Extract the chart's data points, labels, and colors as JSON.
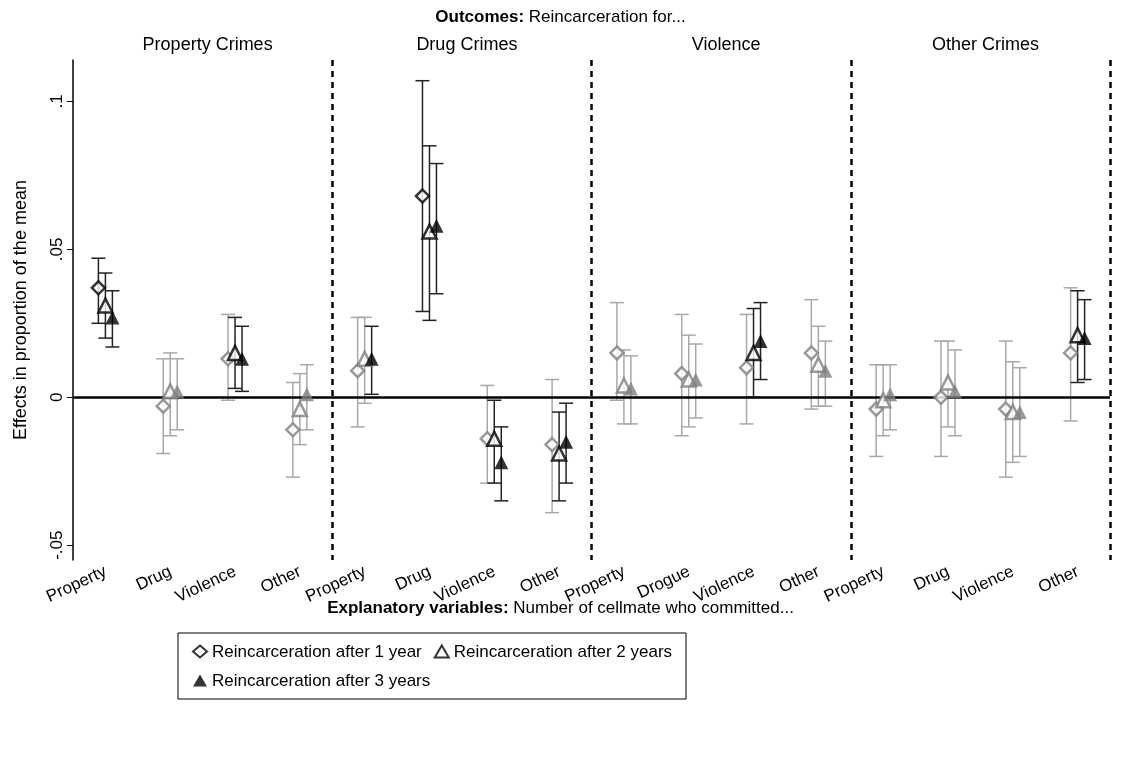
{
  "chart_data": {
    "type": "scatter",
    "title": "Outcomes: Reincarceration for...",
    "xlabel": "Explanatory variables: Number of cellmate who committed...",
    "ylabel": "Effects in proportion of the mean",
    "annotations": [
      "Property Crimes",
      "Drug Crimes",
      "Violence",
      "Other Crimes"
    ],
    "categories": [
      "Property",
      "Drug",
      "Violence",
      "Other",
      "Property",
      "Drug",
      "Violence",
      "Other",
      "Property",
      "Drogue",
      "Violence",
      "Other",
      "Property",
      "Drug",
      "Violence",
      "Other"
    ],
    "ylim": [
      -0.055,
      0.114
    ],
    "yticks": [
      {
        "value": -0.05,
        "label": "-.05"
      },
      {
        "value": 0,
        "label": "0"
      },
      {
        "value": 0.05,
        "label": ".05"
      },
      {
        "value": 0.1,
        "label": ".1"
      }
    ],
    "legend": "bottom",
    "ref_lines": [
      {
        "axis": "y",
        "value": 0
      }
    ],
    "series": [
      {
        "name": "Reincarceration after 1 year",
        "marker": "diamond",
        "color": "#000000",
        "values": [
          0.037,
          -0.003,
          0.013,
          -0.011,
          0.009,
          0.068,
          -0.014,
          -0.016,
          0.015,
          0.008,
          0.01,
          0.015,
          -0.004,
          0.0,
          -0.004,
          0.015
        ],
        "errors": [
          [
            0.025,
            0.047
          ],
          [
            -0.019,
            0.013
          ],
          [
            -0.001,
            0.028
          ],
          [
            -0.027,
            0.005
          ],
          [
            -0.01,
            0.027
          ],
          [
            0.029,
            0.107
          ],
          [
            -0.029,
            0.004
          ],
          [
            -0.039,
            0.006
          ],
          [
            -0.001,
            0.032
          ],
          [
            -0.013,
            0.028
          ],
          [
            -0.009,
            0.028
          ],
          [
            -0.004,
            0.033
          ],
          [
            -0.02,
            0.011
          ],
          [
            -0.02,
            0.019
          ],
          [
            -0.027,
            0.019
          ],
          [
            -0.008,
            0.037
          ]
        ],
        "colors": [
          "#000000",
          "#808080",
          "#808080",
          "#808080",
          "#808080",
          "#000000",
          "#808080",
          "#808080",
          "#808080",
          "#808080",
          "#808080",
          "#808080",
          "#808080",
          "#808080",
          "#808080",
          "#808080"
        ]
      },
      {
        "name": "Reincarceration after 2 years",
        "marker": "triangle",
        "color": "#000000",
        "values": [
          0.031,
          0.002,
          0.015,
          -0.004,
          0.013,
          0.056,
          -0.014,
          -0.019,
          0.004,
          0.006,
          0.015,
          0.011,
          -0.001,
          0.005,
          -0.005,
          0.021
        ],
        "errors": [
          [
            0.02,
            0.042
          ],
          [
            -0.013,
            0.015
          ],
          [
            0.003,
            0.027
          ],
          [
            -0.016,
            0.008
          ],
          [
            -0.002,
            0.027
          ],
          [
            0.026,
            0.085
          ],
          [
            -0.029,
            -0.001
          ],
          [
            -0.035,
            -0.005
          ],
          [
            -0.009,
            0.016
          ],
          [
            -0.01,
            0.021
          ],
          [
            0.0,
            0.03
          ],
          [
            -0.003,
            0.024
          ],
          [
            -0.013,
            0.011
          ],
          [
            -0.01,
            0.019
          ],
          [
            -0.022,
            0.012
          ],
          [
            0.005,
            0.036
          ]
        ],
        "colors": [
          "#000000",
          "#808080",
          "#000000",
          "#808080",
          "#808080",
          "#000000",
          "#000000",
          "#000000",
          "#808080",
          "#808080",
          "#000000",
          "#808080",
          "#808080",
          "#808080",
          "#808080",
          "#000000"
        ]
      },
      {
        "name": "Reincarceration after 3 years",
        "marker": "triangle",
        "color": "#000000",
        "values": [
          0.027,
          0.002,
          0.013,
          0.001,
          0.013,
          0.058,
          -0.022,
          -0.015,
          0.003,
          0.006,
          0.019,
          0.009,
          0.001,
          0.002,
          -0.005,
          0.02
        ],
        "errors": [
          [
            0.017,
            0.036
          ],
          [
            -0.011,
            0.013
          ],
          [
            0.002,
            0.024
          ],
          [
            -0.011,
            0.011
          ],
          [
            0.001,
            0.024
          ],
          [
            0.035,
            0.079
          ],
          [
            -0.035,
            -0.01
          ],
          [
            -0.029,
            -0.002
          ],
          [
            -0.009,
            0.014
          ],
          [
            -0.007,
            0.018
          ],
          [
            0.006,
            0.032
          ],
          [
            -0.003,
            0.019
          ],
          [
            -0.011,
            0.011
          ],
          [
            -0.013,
            0.016
          ],
          [
            -0.02,
            0.01
          ],
          [
            0.006,
            0.033
          ]
        ],
        "colors": [
          "#000000",
          "#808080",
          "#000000",
          "#808080",
          "#000000",
          "#000000",
          "#000000",
          "#000000",
          "#808080",
          "#808080",
          "#000000",
          "#808080",
          "#808080",
          "#808080",
          "#808080",
          "#000000"
        ]
      }
    ]
  }
}
